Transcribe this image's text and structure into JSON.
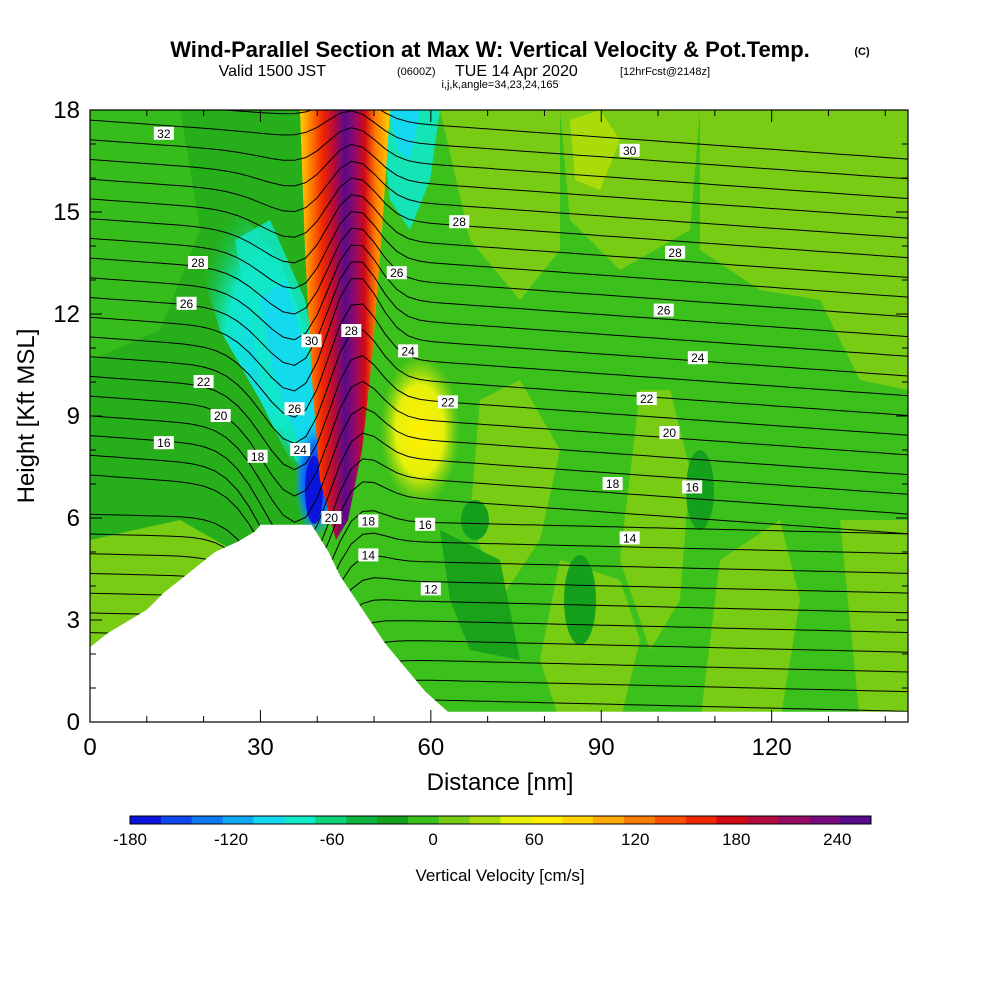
{
  "title": {
    "main": "Wind-Parallel Section at Max W: Vertical Velocity & Pot.Temp.",
    "copyright": "(C)",
    "valid_prefix": "Valid 1500 JST",
    "valid_utc": "(0600Z)",
    "valid_suffix": "TUE 14 Apr 2020",
    "forecast": "[12hrFcst@2148z]",
    "params": "i,j,k,angle=34,23,24,165"
  },
  "chart_data": {
    "type": "heatmap",
    "xlabel": "Distance [nm]",
    "ylabel": "Height [Kft MSL]",
    "xlim": [
      0,
      144
    ],
    "ylim": [
      0,
      18
    ],
    "x_ticks": [
      "0",
      "30",
      "60",
      "90",
      "120"
    ],
    "y_ticks": [
      "0",
      "3",
      "6",
      "9",
      "12",
      "15",
      "18"
    ],
    "colorbar": {
      "title": "Vertical Velocity [cm/s]",
      "range": [
        -180,
        260
      ],
      "step": 20,
      "tick_labels": [
        "-180",
        "-120",
        "-60",
        "0",
        "60",
        "120",
        "180",
        "240"
      ],
      "colors": [
        "#0a14dc",
        "#0e46f0",
        "#0c78f5",
        "#10a8f8",
        "#14d8f0",
        "#10e8c8",
        "#10d278",
        "#0cb440",
        "#14a01c",
        "#3cc01c",
        "#78cc14",
        "#aadc0a",
        "#e6f00a",
        "#fff000",
        "#ffd200",
        "#ffaa00",
        "#ff7d00",
        "#ff5000",
        "#f02800",
        "#d20a14",
        "#b40a3c",
        "#960a64",
        "#780a7d",
        "#5a0a8c"
      ]
    },
    "velocity_features": [
      {
        "name": "updraft core",
        "x": 44.5,
        "y": 12,
        "value": 240
      },
      {
        "name": "downdraft core",
        "x": 39,
        "y": 7,
        "value": -180
      },
      {
        "name": "downdraft band",
        "x": 32,
        "y": 11,
        "value": -120
      }
    ],
    "terrain": [
      [
        0,
        2.2
      ],
      [
        3,
        2.6
      ],
      [
        6,
        2.9
      ],
      [
        10,
        3.3
      ],
      [
        13,
        3.8
      ],
      [
        16,
        4.2
      ],
      [
        19,
        4.6
      ],
      [
        22,
        5.0
      ],
      [
        26,
        5.3
      ],
      [
        29,
        5.6
      ],
      [
        30,
        5.8
      ],
      [
        39,
        5.8
      ],
      [
        42,
        5.0
      ],
      [
        44,
        4.3
      ],
      [
        46,
        3.8
      ],
      [
        48,
        3.3
      ],
      [
        50,
        2.8
      ],
      [
        52,
        2.3
      ],
      [
        55,
        1.7
      ],
      [
        57,
        1.3
      ],
      [
        59,
        0.9
      ],
      [
        61,
        0.6
      ],
      [
        63,
        0.3
      ],
      [
        66,
        0.3
      ],
      [
        144,
        0.3
      ]
    ],
    "theta_contours": [
      {
        "label": "12",
        "x": 60,
        "y": 3.9
      },
      {
        "label": "14",
        "x": 49,
        "y": 4.9
      },
      {
        "label": "14",
        "x": 95,
        "y": 5.4
      },
      {
        "label": "16",
        "x": 13,
        "y": 8.2
      },
      {
        "label": "16",
        "x": 59,
        "y": 5.8
      },
      {
        "label": "16",
        "x": 106,
        "y": 6.9
      },
      {
        "label": "18",
        "x": 29.5,
        "y": 7.8
      },
      {
        "label": "18",
        "x": 49,
        "y": 5.9
      },
      {
        "label": "18",
        "x": 92,
        "y": 7.0
      },
      {
        "label": "20",
        "x": 23,
        "y": 9.0
      },
      {
        "label": "20",
        "x": 42.5,
        "y": 6.0
      },
      {
        "label": "20",
        "x": 102,
        "y": 8.5
      },
      {
        "label": "22",
        "x": 20,
        "y": 10.0
      },
      {
        "label": "22",
        "x": 63,
        "y": 9.4
      },
      {
        "label": "22",
        "x": 98,
        "y": 9.5
      },
      {
        "label": "24",
        "x": 37,
        "y": 8.0
      },
      {
        "label": "24",
        "x": 56,
        "y": 10.9
      },
      {
        "label": "24",
        "x": 107,
        "y": 10.7
      },
      {
        "label": "26",
        "x": 17,
        "y": 12.3
      },
      {
        "label": "26",
        "x": 36,
        "y": 9.2
      },
      {
        "label": "26",
        "x": 54,
        "y": 13.2
      },
      {
        "label": "26",
        "x": 101,
        "y": 12.1
      },
      {
        "label": "28",
        "x": 19,
        "y": 13.5
      },
      {
        "label": "28",
        "x": 46,
        "y": 11.5
      },
      {
        "label": "28",
        "x": 65,
        "y": 14.7
      },
      {
        "label": "28",
        "x": 103,
        "y": 13.8
      },
      {
        "label": "30",
        "x": 39,
        "y": 11.2
      },
      {
        "label": "30",
        "x": 95,
        "y": 16.8
      },
      {
        "label": "32",
        "x": 13,
        "y": 17.3
      }
    ]
  }
}
